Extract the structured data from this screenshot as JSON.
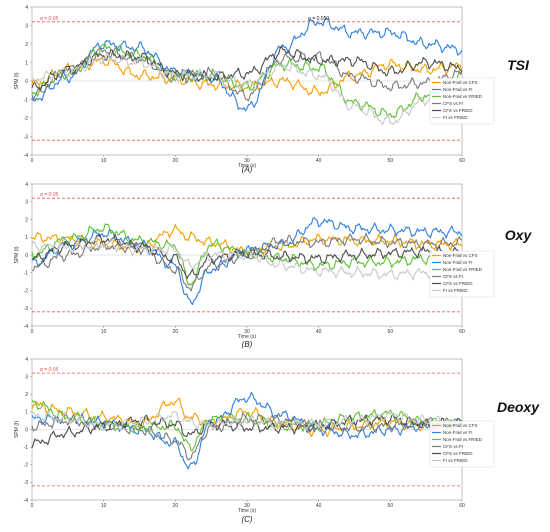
{
  "colors": {
    "Non-Frail vs CFS": "#f5a000",
    "Non-Frail vs FI": "#2d7fe0",
    "Non-Frail vs FRIED": "#5cc232",
    "CFS vs FI": "#7a7a7a",
    "CFS vs FRIED": "#4d4d4d",
    "FI vs FRIED": "#c8c8c8",
    "threshold": "#e06050"
  },
  "chart_data": [
    {
      "type": "line",
      "title": "TSI",
      "caption": "(A)",
      "xlabel": "Time (s)",
      "ylabel": "SPM {t}",
      "xlim": [
        0,
        60
      ],
      "ylim": [
        -4,
        4
      ],
      "x_ticks": [
        "0",
        "10",
        "20",
        "30",
        "40",
        "50",
        "60"
      ],
      "y_ticks": [
        "4",
        "3",
        "2",
        "1",
        "0",
        "-1",
        "-2",
        "-3",
        "-4"
      ],
      "threshold": 3.2,
      "alpha_label": "α = 0.05",
      "p_label": "p = 0.050",
      "p_label_x": 40,
      "series": [
        {
          "name": "Non-Frail vs CFS",
          "x": [
            0,
            5,
            10,
            15,
            20,
            25,
            30,
            35,
            40,
            45,
            50,
            55,
            60
          ],
          "values": [
            -0.2,
            0.6,
            1.1,
            0.3,
            0.1,
            -0.2,
            -0.3,
            0.0,
            -0.6,
            0.3,
            0.9,
            0.6,
            0.8
          ]
        },
        {
          "name": "Non-Frail vs FI",
          "x": [
            0,
            5,
            10,
            15,
            20,
            25,
            30,
            35,
            40,
            45,
            50,
            55,
            60
          ],
          "values": [
            -1.0,
            0.2,
            2.0,
            1.8,
            0.5,
            0.2,
            -1.5,
            1.8,
            3.2,
            2.6,
            2.6,
            2.0,
            1.7
          ]
        },
        {
          "name": "Non-Frail vs FRIED",
          "x": [
            0,
            5,
            10,
            15,
            20,
            25,
            30,
            35,
            40,
            45,
            50,
            55,
            60
          ],
          "values": [
            -0.6,
            0.4,
            1.8,
            1.4,
            0.3,
            0.3,
            -0.3,
            0.9,
            0.7,
            -1.2,
            -1.8,
            -0.8,
            0.3
          ]
        },
        {
          "name": "CFS vs FI",
          "x": [
            0,
            5,
            10,
            15,
            20,
            25,
            30,
            35,
            40,
            45,
            50,
            55,
            60
          ],
          "values": [
            -0.8,
            0.6,
            1.6,
            1.2,
            0.2,
            0.4,
            -0.8,
            1.2,
            1.3,
            0.2,
            -0.3,
            -0.1,
            0.4
          ]
        },
        {
          "name": "CFS vs FRIED",
          "x": [
            0,
            5,
            10,
            15,
            20,
            25,
            30,
            35,
            40,
            45,
            50,
            55,
            60
          ],
          "values": [
            -0.4,
            0.6,
            1.4,
            1.3,
            0.4,
            0.2,
            0.4,
            1.6,
            1.1,
            1.1,
            0.5,
            1.0,
            0.7
          ]
        },
        {
          "name": "FI vs FRIED",
          "x": [
            0,
            5,
            10,
            15,
            20,
            25,
            30,
            35,
            40,
            45,
            50,
            55,
            60
          ],
          "values": [
            0.1,
            0.5,
            1.2,
            1.0,
            0.3,
            0.3,
            -0.2,
            0.8,
            0.3,
            -1.4,
            -2.2,
            -1.0,
            -0.3
          ]
        }
      ]
    },
    {
      "type": "line",
      "title": "Oxy",
      "caption": "(B)",
      "xlabel": "Time (s)",
      "ylabel": "SPM {t}",
      "xlim": [
        0,
        60
      ],
      "ylim": [
        -4,
        4
      ],
      "x_ticks": [
        "0",
        "10",
        "20",
        "30",
        "40",
        "50",
        "60"
      ],
      "y_ticks": [
        "4",
        "3",
        "2",
        "1",
        "0",
        "-1",
        "-2",
        "-3",
        "-4"
      ],
      "threshold": 3.2,
      "alpha_label": "α = 0.05",
      "series": [
        {
          "name": "Non-Frail vs CFS",
          "x": [
            0,
            5,
            10,
            15,
            20,
            22,
            25,
            30,
            35,
            40,
            45,
            50,
            55,
            60
          ],
          "values": [
            1.0,
            0.9,
            0.6,
            0.4,
            1.4,
            1.0,
            0.7,
            0.2,
            0.5,
            0.9,
            0.8,
            0.8,
            0.6,
            0.6
          ]
        },
        {
          "name": "Non-Frail vs FI",
          "x": [
            0,
            5,
            10,
            15,
            20,
            22,
            25,
            30,
            35,
            40,
            45,
            50,
            55,
            60
          ],
          "values": [
            -0.5,
            0.6,
            1.2,
            0.6,
            -0.6,
            -2.7,
            -0.8,
            0.3,
            0.6,
            1.9,
            1.5,
            1.4,
            1.3,
            1.3
          ]
        },
        {
          "name": "Non-Frail vs FRIED",
          "x": [
            0,
            5,
            10,
            15,
            20,
            22,
            25,
            30,
            35,
            40,
            45,
            50,
            55,
            60
          ],
          "values": [
            0.0,
            0.9,
            1.5,
            0.8,
            0.5,
            -1.6,
            0.6,
            0.1,
            -0.2,
            -0.6,
            -0.4,
            -0.4,
            -0.2,
            -0.2
          ]
        },
        {
          "name": "CFS vs FI",
          "x": [
            0,
            5,
            10,
            15,
            20,
            22,
            25,
            30,
            35,
            40,
            45,
            50,
            55,
            60
          ],
          "values": [
            -0.7,
            0.0,
            0.5,
            0.4,
            -0.8,
            -1.8,
            -0.6,
            0.0,
            0.8,
            0.7,
            0.9,
            0.7,
            0.6,
            0.7
          ]
        },
        {
          "name": "CFS vs FRIED",
          "x": [
            0,
            5,
            10,
            15,
            20,
            22,
            25,
            30,
            35,
            40,
            45,
            50,
            55,
            60
          ],
          "values": [
            -0.2,
            0.5,
            0.9,
            0.5,
            -0.2,
            -1.2,
            -0.2,
            0.1,
            -0.1,
            -0.2,
            0.0,
            0.1,
            0.2,
            0.1
          ]
        },
        {
          "name": "FI vs FRIED",
          "x": [
            0,
            5,
            10,
            15,
            20,
            22,
            25,
            30,
            35,
            40,
            45,
            50,
            55,
            60
          ],
          "values": [
            0.5,
            0.4,
            0.6,
            0.3,
            0.3,
            -0.6,
            0.0,
            0.0,
            -0.6,
            -0.9,
            -1.0,
            -1.1,
            -1.0,
            -1.0
          ]
        }
      ]
    },
    {
      "type": "line",
      "title": "Deoxy",
      "caption": "(C)",
      "xlabel": "Time (s)",
      "ylabel": "SPM {t}",
      "xlim": [
        0,
        60
      ],
      "ylim": [
        -4,
        4
      ],
      "x_ticks": [
        "0",
        "10",
        "20",
        "30",
        "40",
        "50",
        "60"
      ],
      "y_ticks": [
        "4",
        "3",
        "2",
        "1",
        "0",
        "-1",
        "-2",
        "-3",
        "-4"
      ],
      "threshold": 3.2,
      "alpha_label": "α = 0.05",
      "series": [
        {
          "name": "Non-Frail vs CFS",
          "x": [
            0,
            5,
            10,
            15,
            20,
            22,
            25,
            30,
            35,
            40,
            45,
            50,
            55,
            60
          ],
          "values": [
            1.4,
            1.0,
            0.7,
            0.3,
            1.6,
            0.7,
            0.4,
            1.0,
            0.3,
            -0.1,
            0.2,
            0.4,
            0.2,
            0.2
          ]
        },
        {
          "name": "Non-Frail vs FI",
          "x": [
            0,
            5,
            10,
            15,
            20,
            22,
            25,
            30,
            35,
            40,
            45,
            50,
            55,
            60
          ],
          "values": [
            0.6,
            0.6,
            0.4,
            0.0,
            -0.8,
            -2.2,
            0.4,
            1.8,
            0.8,
            0.0,
            -0.3,
            0.0,
            0.2,
            0.3
          ]
        },
        {
          "name": "Non-Frail vs FRIED",
          "x": [
            0,
            5,
            10,
            15,
            20,
            22,
            25,
            30,
            35,
            40,
            45,
            50,
            55,
            60
          ],
          "values": [
            1.5,
            0.7,
            0.3,
            0.1,
            0.2,
            -1.0,
            0.6,
            0.6,
            0.2,
            0.3,
            0.7,
            0.9,
            0.4,
            0.2
          ]
        },
        {
          "name": "CFS vs FI",
          "x": [
            0,
            5,
            10,
            15,
            20,
            22,
            25,
            30,
            35,
            40,
            45,
            50,
            55,
            60
          ],
          "values": [
            0.2,
            0.5,
            0.3,
            0.0,
            -0.6,
            -1.5,
            0.1,
            0.6,
            0.5,
            0.2,
            0.1,
            0.2,
            0.4,
            0.3
          ]
        },
        {
          "name": "CFS vs FRIED",
          "x": [
            0,
            5,
            10,
            15,
            20,
            22,
            25,
            30,
            35,
            40,
            45,
            50,
            55,
            60
          ],
          "values": [
            -0.8,
            -0.2,
            0.2,
            0.5,
            0.3,
            -0.3,
            0.3,
            0.1,
            0.1,
            0.2,
            0.5,
            0.6,
            0.3,
            0.4
          ]
        },
        {
          "name": "FI vs FRIED",
          "x": [
            0,
            5,
            10,
            15,
            20,
            22,
            25,
            30,
            35,
            40,
            45,
            50,
            55,
            60
          ],
          "values": [
            0.8,
            0.6,
            0.2,
            0.4,
            0.8,
            0.4,
            0.3,
            0.5,
            0.3,
            0.3,
            0.5,
            0.8,
            0.5,
            0.3
          ]
        }
      ]
    }
  ]
}
